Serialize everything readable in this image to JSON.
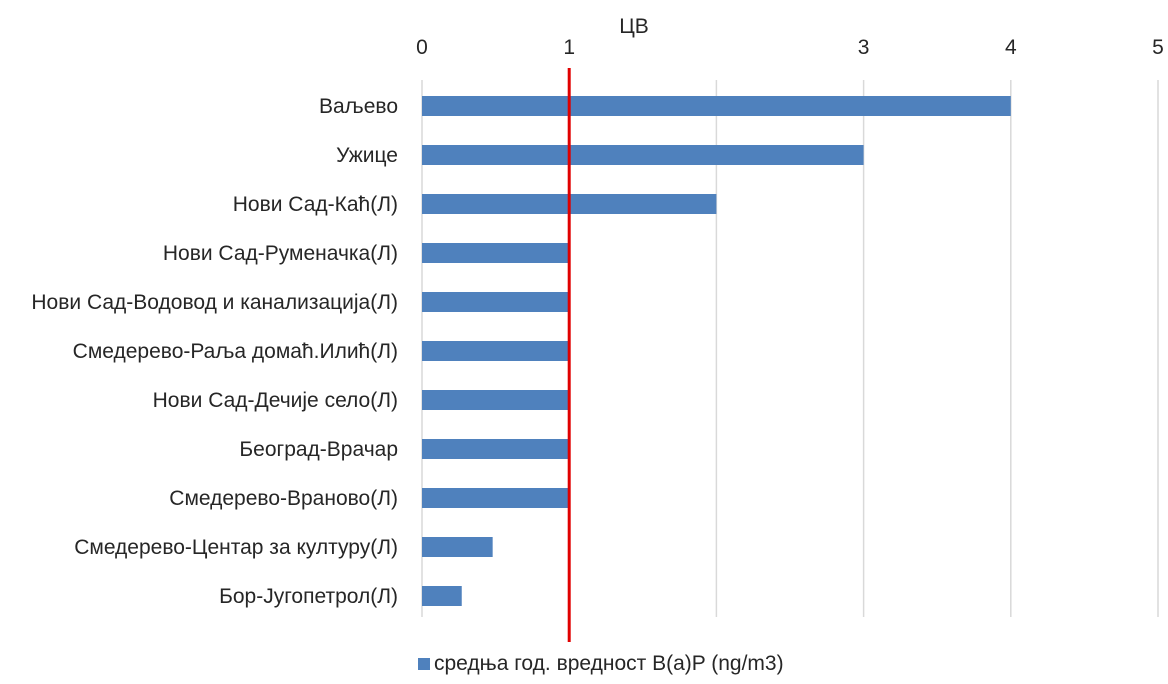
{
  "chart_data": {
    "type": "bar",
    "orientation": "horizontal",
    "categories": [
      "Ваљево",
      "Ужице",
      "Нови Сад-Каћ(Л)",
      "Нови Сад-Руменачка(Л)",
      "Нови Сад-Водовод и канализација(Л)",
      "Смедерево-Раља домаћ.Илић(Л)",
      "Нови Сад-Дечије село(Л)",
      "Београд-Врачар",
      "Смедерево-Враново(Л)",
      "Смедерево-Центар за културу(Л)",
      "Бор-Југопетрол(Л)"
    ],
    "series": [
      {
        "name": "средња год. вредност B(a)P (ng/m3)",
        "values": [
          4,
          3,
          2,
          1,
          1,
          1,
          1,
          1,
          1,
          0.48,
          0.27
        ],
        "color": "#4f81bd"
      }
    ],
    "xlim": [
      0,
      5
    ],
    "ticks": [
      "0",
      "1",
      "",
      "3",
      "4",
      "5"
    ],
    "axis_position": "top",
    "grid": "vertical",
    "grid_color": "#d9d9d9",
    "reference_line": {
      "value": 1,
      "label": "ЦВ",
      "color": "#e00000"
    },
    "legend_position": "bottom"
  }
}
